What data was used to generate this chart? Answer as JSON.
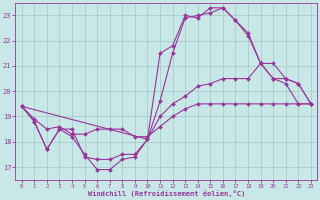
{
  "background_color": "#c8e8e8",
  "grid_color": "#b8d8d8",
  "line_color": "#993399",
  "marker_color": "#993399",
  "xlabel": "Windchill (Refroidissement éolien,°C)",
  "xlim": [
    -0.5,
    23.5
  ],
  "ylim": [
    16.5,
    23.5
  ],
  "xticks": [
    0,
    1,
    2,
    3,
    4,
    5,
    6,
    7,
    8,
    9,
    10,
    11,
    12,
    13,
    14,
    15,
    16,
    17,
    18,
    19,
    20,
    21,
    22,
    23
  ],
  "yticks": [
    17,
    18,
    19,
    20,
    21,
    22,
    23
  ],
  "lines": [
    {
      "x": [
        0,
        1,
        2,
        3,
        4,
        5,
        6,
        7,
        8,
        9,
        10,
        11,
        12,
        13,
        14,
        15,
        16,
        17,
        18,
        19,
        20,
        21,
        22,
        23
      ],
      "y": [
        19.4,
        18.8,
        17.7,
        18.5,
        18.2,
        17.5,
        16.9,
        16.9,
        17.3,
        17.4,
        18.1,
        19.6,
        21.5,
        22.9,
        23.0,
        23.1,
        23.3,
        22.8,
        22.3,
        21.1,
        20.5,
        20.3,
        19.5,
        19.5
      ]
    },
    {
      "x": [
        0,
        1,
        2,
        3,
        4,
        5,
        6,
        7,
        8,
        9,
        10,
        11,
        12,
        13,
        14,
        15,
        16,
        17,
        18,
        19,
        20,
        21,
        22,
        23
      ],
      "y": [
        19.4,
        18.9,
        18.5,
        18.6,
        18.3,
        18.3,
        18.5,
        18.5,
        18.5,
        18.2,
        18.2,
        18.6,
        19.0,
        19.3,
        19.5,
        19.5,
        19.5,
        19.5,
        19.5,
        19.5,
        19.5,
        19.5,
        19.5,
        19.5
      ]
    },
    {
      "x": [
        0,
        1,
        2,
        3,
        4,
        5,
        6,
        7,
        8,
        9,
        10,
        11,
        12,
        13,
        14,
        15,
        16,
        17,
        18,
        19,
        20,
        21,
        22,
        23
      ],
      "y": [
        19.4,
        18.8,
        17.7,
        18.5,
        18.5,
        17.4,
        17.3,
        17.3,
        17.5,
        17.5,
        18.1,
        19.0,
        19.5,
        19.8,
        20.2,
        20.3,
        20.5,
        20.5,
        20.5,
        21.1,
        21.1,
        20.5,
        20.3,
        19.5
      ]
    },
    {
      "x": [
        0,
        10,
        11,
        12,
        13,
        14,
        15,
        16,
        17,
        18,
        19,
        20,
        21,
        22,
        23
      ],
      "y": [
        19.4,
        18.1,
        21.5,
        21.8,
        23.0,
        22.9,
        23.3,
        23.3,
        22.8,
        22.2,
        21.1,
        20.5,
        20.5,
        20.3,
        19.5
      ]
    }
  ]
}
